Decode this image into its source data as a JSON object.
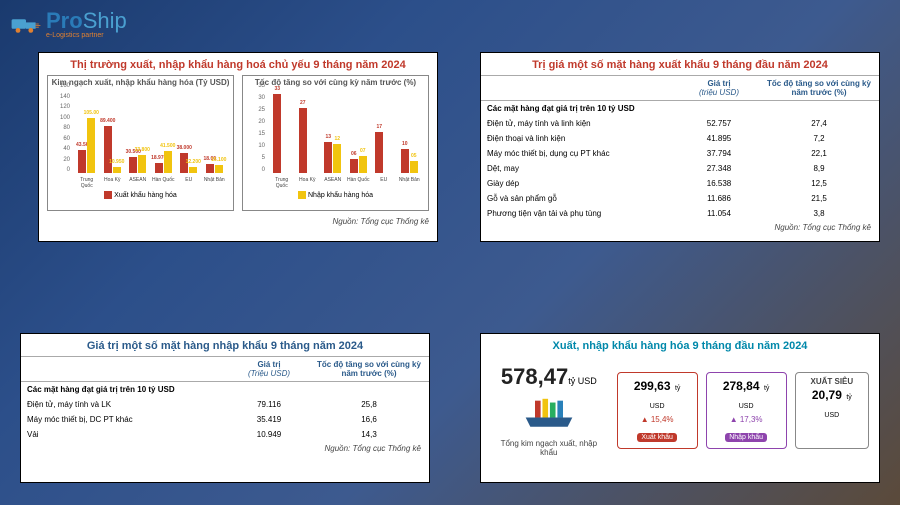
{
  "logo": {
    "brand1": "Pro",
    "brand2": "Ship",
    "sub": "e-Logistics partner"
  },
  "colors": {
    "red": "#c0392b",
    "yellow": "#f1c40f",
    "teal": "#0099bb",
    "blue": "#2a5a8a"
  },
  "panel1": {
    "title": "Thị trường xuất, nhập khẩu hàng hoá chủ yếu 9 tháng năm 2024",
    "chart_a": {
      "subtitle": "Kim ngạch xuất, nhập khẩu hàng hóa\n(Tỷ USD)",
      "ylim": [
        0,
        160
      ],
      "ytick_step": 20,
      "categories": [
        "Trung\nQuốc",
        "Hoa Kỳ",
        "ASEAN",
        "Hàn\nQuốc",
        "EU",
        "Nhật\nBản"
      ],
      "series": [
        {
          "name": "Xuất khẩu hàng hóa",
          "color": "#c0392b",
          "values": [
            43.56,
            89.4,
            30.5,
            18.97,
            38.0,
            18.0
          ],
          "labels": [
            "43.56",
            "89.400",
            "30.500",
            "18.970",
            "38.000",
            "18.00"
          ]
        },
        {
          "name": "Nhập khẩu hàng hóa",
          "color": "#f1c40f",
          "values": [
            105.0,
            10.95,
            33.8,
            41.5,
            12.2,
            16.1
          ],
          "labels": [
            "105.00",
            "10.950",
            "33.800",
            "41.500",
            "12.200",
            "16.100"
          ]
        }
      ]
    },
    "chart_b": {
      "subtitle": "Tốc độ tăng\nso với cùng kỳ năm trước (%)",
      "ylim": [
        0,
        35
      ],
      "ytick_step": 5,
      "categories": [
        "Trung\nQuốc",
        "Hoa Kỳ",
        "ASEAN",
        "Hàn\nQuốc",
        "EU",
        "Nhật\nBản"
      ],
      "series": [
        {
          "name": "Xuất khẩu hàng hóa",
          "color": "#c0392b",
          "values": [
            33,
            27,
            13,
            6,
            17,
            10
          ],
          "labels": [
            "33",
            "27",
            "13",
            "06",
            "17",
            "10"
          ]
        },
        {
          "name": "Nhập khẩu hàng hóa",
          "color": "#f1c40f",
          "values": [
            0,
            0,
            12,
            7,
            0,
            5
          ],
          "labels": [
            "",
            "",
            "12",
            "07",
            "",
            "05"
          ]
        }
      ],
      "line_points": [
        0,
        0,
        0,
        0,
        0,
        2
      ]
    },
    "legend": [
      {
        "color": "#c0392b",
        "label": "Xuất khẩu hàng hóa"
      },
      {
        "color": "#f1c40f",
        "label": "Nhập khẩu hàng hóa"
      }
    ],
    "source": "Nguồn: Tổng cục Thống kê"
  },
  "panel2": {
    "title": "Trị giá một số mặt hàng xuất khẩu 9 tháng đầu năm 2024",
    "col_value": "Giá trị",
    "col_value_sub": "(triệu USD)",
    "col_rate": "Tốc độ tăng so với\ncùng kỳ năm trước (%)",
    "section": "Các mặt hàng đạt giá trị trên 10 tỷ USD",
    "rows": [
      {
        "name": "Điện tử, máy tính và linh kiện",
        "value": "52.757",
        "rate": "27,4"
      },
      {
        "name": "Điện thoại và linh kiện",
        "value": "41.895",
        "rate": "7,2"
      },
      {
        "name": "Máy móc thiết bị, dụng cụ PT khác",
        "value": "37.794",
        "rate": "22,1"
      },
      {
        "name": "Dệt, may",
        "value": "27.348",
        "rate": "8,9"
      },
      {
        "name": "Giày dép",
        "value": "16.538",
        "rate": "12,5"
      },
      {
        "name": "Gỗ và sản phẩm gỗ",
        "value": "11.686",
        "rate": "21,5"
      },
      {
        "name": "Phương tiện vận tải và phụ tùng",
        "value": "11.054",
        "rate": "3,8"
      }
    ],
    "source": "Nguồn: Tổng cục Thống kê"
  },
  "panel3": {
    "title": "Giá trị một số mặt hàng nhập khẩu 9 tháng năm 2024",
    "col_value": "Giá trị",
    "col_value_sub": "(Triệu USD)",
    "col_rate": "Tốc độ tăng so với\ncùng kỳ năm trước (%)",
    "section": "Các mặt hàng đạt giá trị trên 10 tỷ USD",
    "rows": [
      {
        "name": "Điện tử, máy tính và LK",
        "value": "79.116",
        "rate": "25,8"
      },
      {
        "name": "Máy móc thiết bị, DC PT khác",
        "value": "35.419",
        "rate": "16,6"
      },
      {
        "name": "Vải",
        "value": "10.949",
        "rate": "14,3"
      }
    ],
    "source": "Nguồn: Tổng cục Thống kê"
  },
  "panel4": {
    "title": "Xuất, nhập khẩu hàng hóa 9 tháng đầu năm 2024",
    "total": {
      "value": "578,47",
      "unit": "tỷ\nUSD",
      "label": "Tổng kim ngạch\nxuất, nhập khẩu"
    },
    "boxes": [
      {
        "style": "red",
        "value": "299,63",
        "unit": "tỷ\nUSD",
        "arrow": "▲",
        "rate": "15,4%",
        "label": "Xuất khẩu"
      },
      {
        "style": "purple",
        "value": "278,84",
        "unit": "tỷ\nUSD",
        "arrow": "▲",
        "rate": "17,3%",
        "label": "Nhập khẩu"
      },
      {
        "style": "gray",
        "value": "20,79",
        "unit": "tỷ USD",
        "arrow": "",
        "rate": "",
        "label": "XUẤT SIÊU",
        "label_above": true
      }
    ]
  }
}
